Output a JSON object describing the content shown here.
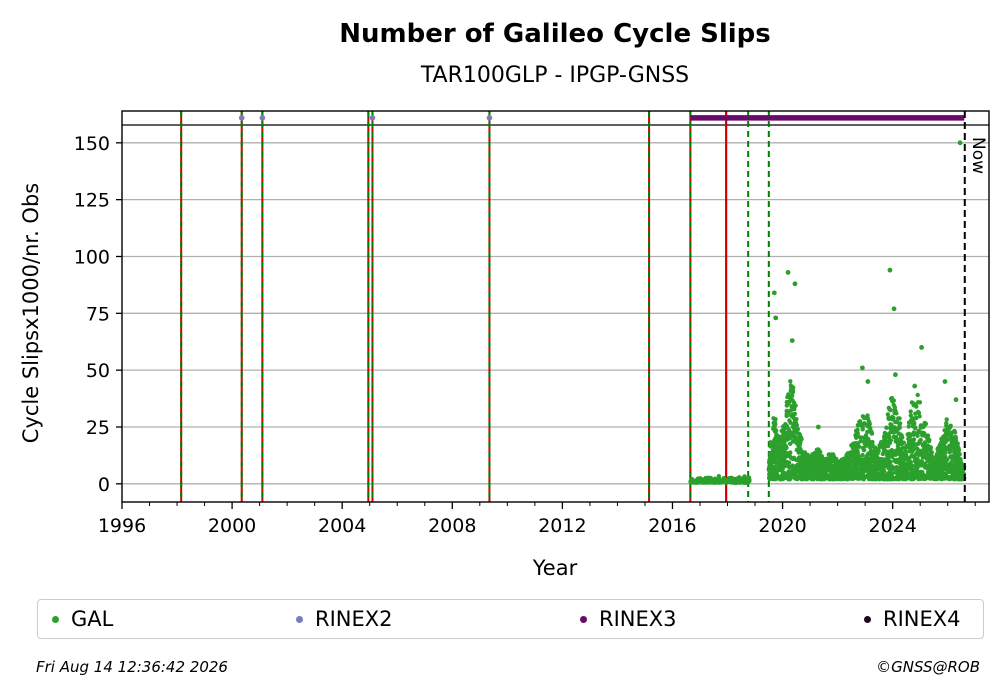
{
  "chart_data": {
    "type": "scatter",
    "title": "Number of Galileo Cycle Slips",
    "subtitle": "TAR100GLP - IPGP-GNSS",
    "xlabel": "Year",
    "ylabel": "Cycle Slipsx1000/nr. Obs",
    "xlim": [
      1996,
      2027.5
    ],
    "ylim": [
      -8,
      164
    ],
    "x_ticks": [
      "1996",
      "2000",
      "2004",
      "2008",
      "2012",
      "2016",
      "2020",
      "2024"
    ],
    "x_tick_values": [
      1996,
      2000,
      2004,
      2008,
      2012,
      2016,
      2020,
      2024
    ],
    "y_ticks": [
      "0",
      "25",
      "50",
      "75",
      "100",
      "125",
      "150"
    ],
    "y_tick_values": [
      0,
      25,
      50,
      75,
      100,
      125,
      150
    ],
    "grid": "horizontal",
    "now_label": "Now",
    "now_x": 2026.62,
    "event_lines": [
      {
        "x": 1998.15,
        "style": "red-green-dashed"
      },
      {
        "x": 2000.35,
        "style": "red-green-dashed"
      },
      {
        "x": 2001.1,
        "style": "red-green-dashed"
      },
      {
        "x": 2004.95,
        "style": "red-green-dashed"
      },
      {
        "x": 2005.1,
        "style": "red-green-dashed"
      },
      {
        "x": 2009.35,
        "style": "red-green-dashed"
      },
      {
        "x": 2015.15,
        "style": "red-green-dashed"
      },
      {
        "x": 2016.65,
        "style": "red-green-dashed"
      },
      {
        "x": 2017.95,
        "style": "red-solid"
      },
      {
        "x": 2018.75,
        "style": "green-dashed"
      },
      {
        "x": 2019.5,
        "style": "green-dashed"
      }
    ],
    "rinex2_marks": [
      2000.35,
      2001.1,
      2005.1,
      2009.35
    ],
    "rinex3_range": [
      2016.65,
      2026.6
    ],
    "rinex_mark_y": 161,
    "series": [
      {
        "name": "GAL",
        "color": "#2ca02c",
        "segments": [
          {
            "range": [
              2016.65,
              2018.8
            ],
            "base": 0.5,
            "spread": 3,
            "peaks": []
          },
          {
            "range": [
              2019.5,
              2026.6
            ],
            "base": 4,
            "spread": 6,
            "peaks": [
              {
                "x": 2019.7,
                "y": 84
              },
              {
                "x": 2019.75,
                "y": 73
              },
              {
                "x": 2020.2,
                "y": 93
              },
              {
                "x": 2020.45,
                "y": 88
              },
              {
                "x": 2020.35,
                "y": 63
              },
              {
                "x": 2021.3,
                "y": 25
              },
              {
                "x": 2022.9,
                "y": 51
              },
              {
                "x": 2023.1,
                "y": 45
              },
              {
                "x": 2023.9,
                "y": 94
              },
              {
                "x": 2024.05,
                "y": 77
              },
              {
                "x": 2024.1,
                "y": 48
              },
              {
                "x": 2024.8,
                "y": 43
              },
              {
                "x": 2025.05,
                "y": 60
              },
              {
                "x": 2025.9,
                "y": 45
              },
              {
                "x": 2026.3,
                "y": 37
              },
              {
                "x": 2026.45,
                "y": 150
              }
            ]
          }
        ],
        "envelope": [
          [
            2019.5,
            12
          ],
          [
            2019.7,
            30
          ],
          [
            2019.85,
            18
          ],
          [
            2020.05,
            25
          ],
          [
            2020.3,
            50
          ],
          [
            2020.55,
            25
          ],
          [
            2020.8,
            12
          ],
          [
            2021.0,
            10
          ],
          [
            2021.3,
            14
          ],
          [
            2021.5,
            8
          ],
          [
            2021.8,
            14
          ],
          [
            2022.0,
            8
          ],
          [
            2022.3,
            10
          ],
          [
            2022.6,
            18
          ],
          [
            2022.85,
            30
          ],
          [
            2023.1,
            28
          ],
          [
            2023.4,
            12
          ],
          [
            2023.7,
            20
          ],
          [
            2023.95,
            38
          ],
          [
            2024.2,
            30
          ],
          [
            2024.45,
            14
          ],
          [
            2024.7,
            34
          ],
          [
            2024.95,
            38
          ],
          [
            2025.2,
            25
          ],
          [
            2025.5,
            8
          ],
          [
            2025.8,
            20
          ],
          [
            2026.0,
            28
          ],
          [
            2026.25,
            22
          ],
          [
            2026.55,
            6
          ]
        ]
      },
      {
        "name": "RINEX2",
        "color": "#7b7bbd"
      },
      {
        "name": "RINEX3",
        "color": "#6a0a6a"
      },
      {
        "name": "RINEX4",
        "color": "#1a0a1a"
      }
    ]
  },
  "legend": [
    {
      "label": "GAL",
      "color": "#2ca02c"
    },
    {
      "label": "RINEX2",
      "color": "#7b7bbd"
    },
    {
      "label": "RINEX3",
      "color": "#6a0a6a"
    },
    {
      "label": "RINEX4",
      "color": "#1a0a1a"
    }
  ],
  "footer": {
    "timestamp": "Fri Aug 14 12:36:42 2026",
    "copyright": "©GNSS@ROB"
  }
}
